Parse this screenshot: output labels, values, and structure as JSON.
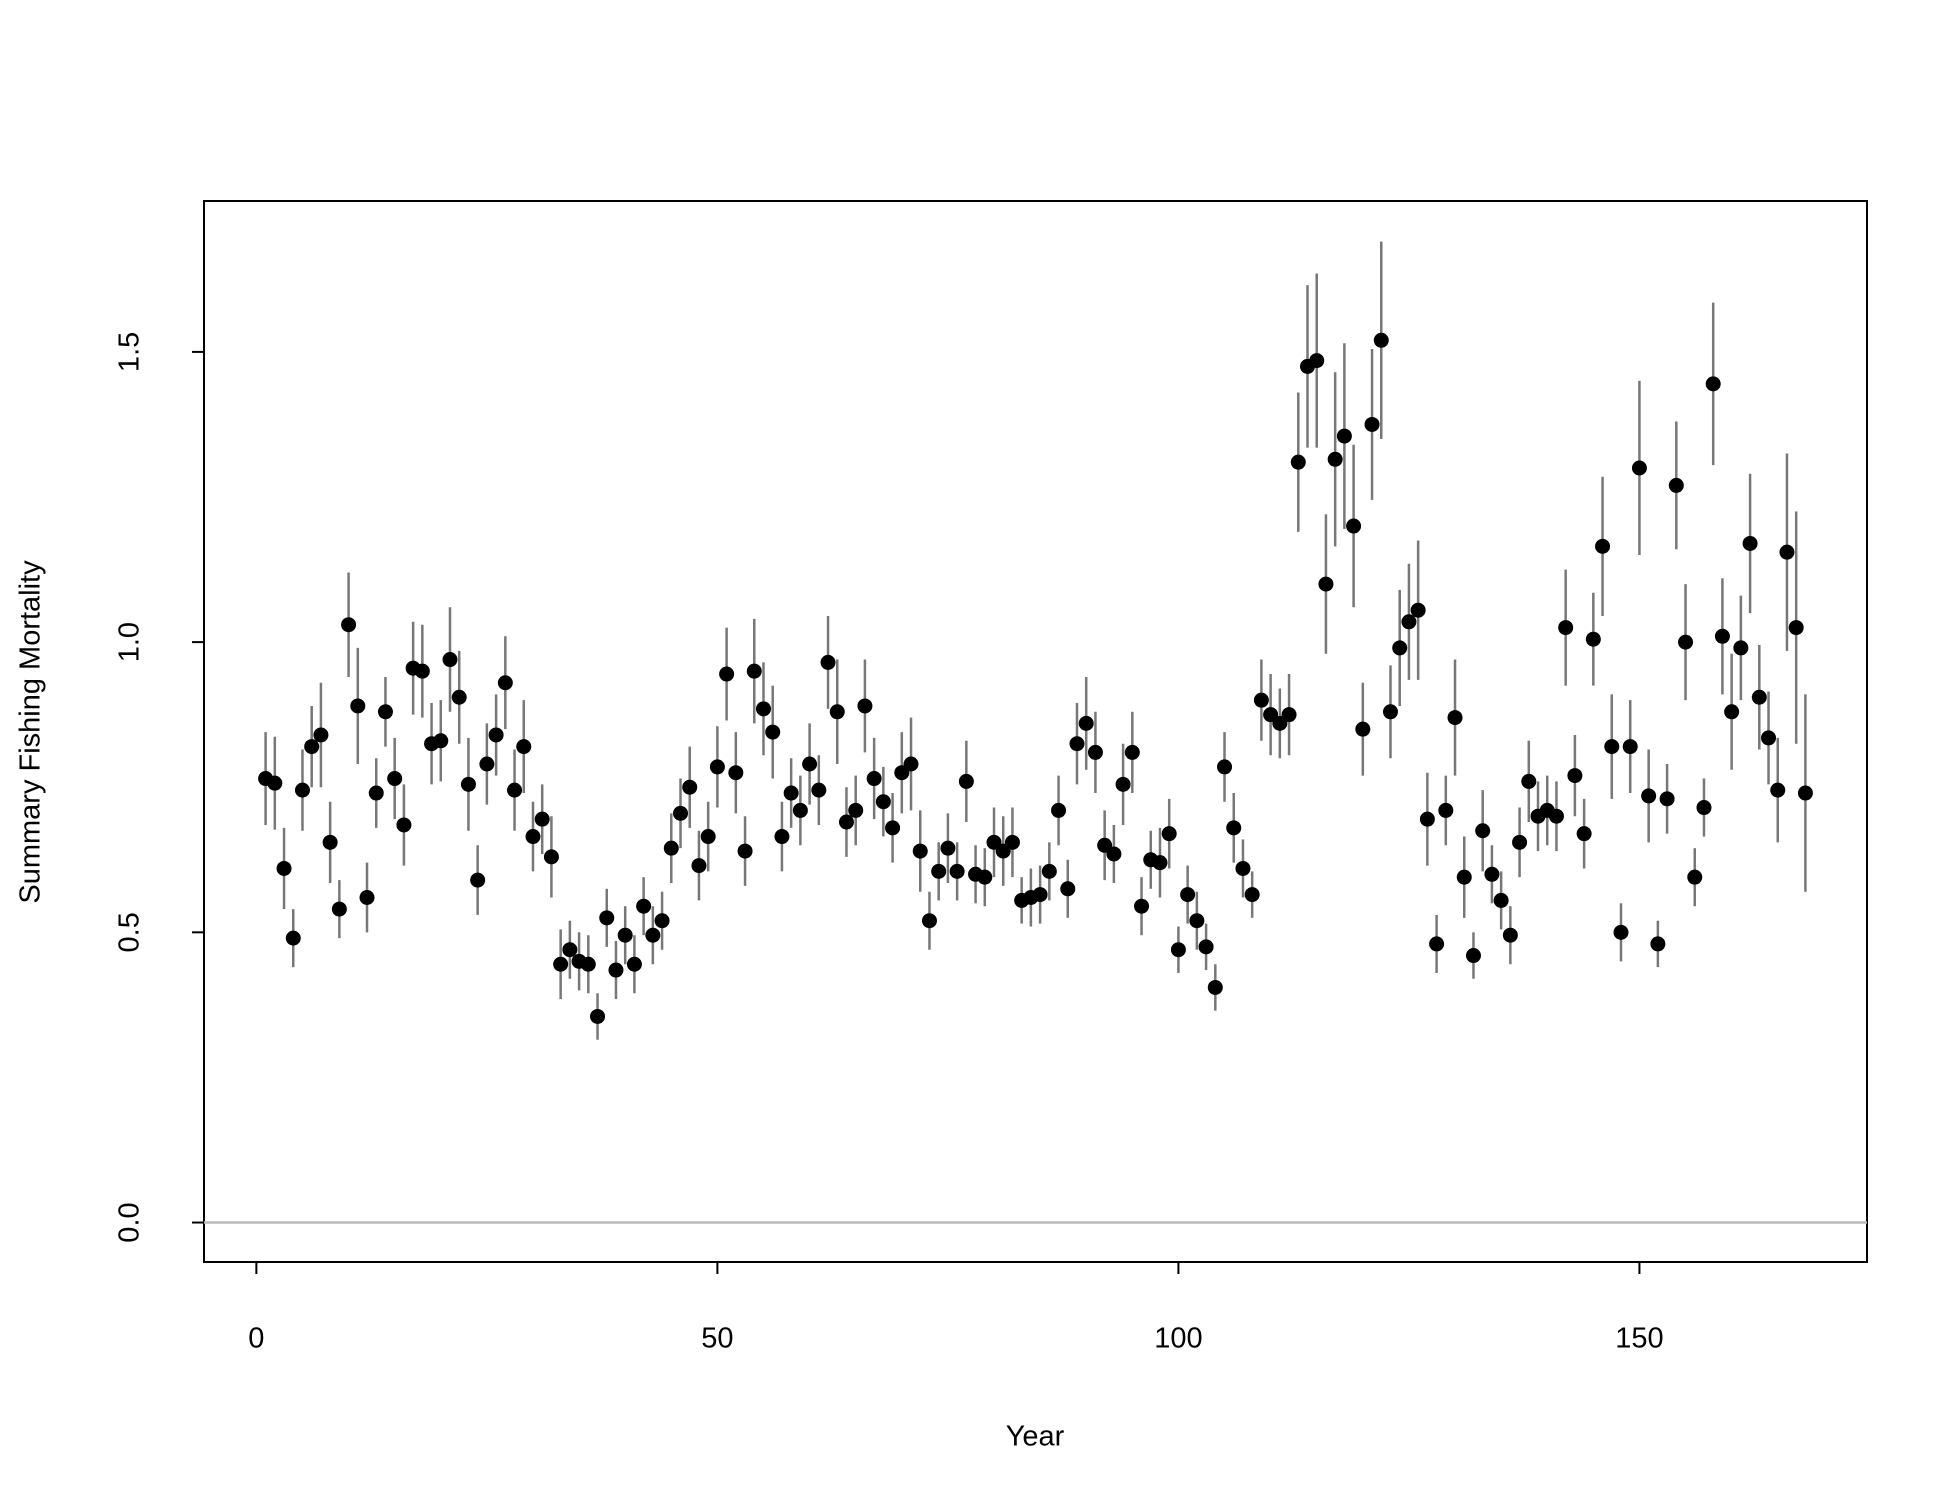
{
  "chart_data": {
    "type": "scatter",
    "xlabel": "Year",
    "ylabel": "Summary Fishing Mortality",
    "x": [
      1,
      2,
      3,
      4,
      5,
      6,
      7,
      8,
      9,
      10,
      11,
      12,
      13,
      14,
      15,
      16,
      17,
      18,
      19,
      20,
      21,
      22,
      23,
      24,
      25,
      26,
      27,
      28,
      29,
      30,
      31,
      32,
      33,
      34,
      35,
      36,
      37,
      38,
      39,
      40,
      41,
      42,
      43,
      44,
      45,
      46,
      47,
      48,
      49,
      50,
      51,
      52,
      53,
      54,
      55,
      56,
      57,
      58,
      59,
      60,
      61,
      62,
      63,
      64,
      65,
      66,
      67,
      68,
      69,
      70,
      71,
      72,
      73,
      74,
      75,
      76,
      77,
      78,
      79,
      80,
      81,
      82,
      83,
      84,
      85,
      86,
      87,
      88,
      89,
      90,
      91,
      92,
      93,
      94,
      95,
      96,
      97,
      98,
      99,
      100,
      101,
      102,
      103,
      104,
      105,
      106,
      107,
      108,
      109,
      110,
      111,
      112,
      113,
      114,
      115,
      116,
      117,
      118,
      119,
      120,
      121,
      122,
      123,
      124,
      125,
      126,
      127,
      128,
      129,
      130,
      131,
      132,
      133,
      134,
      135,
      136,
      137,
      138,
      139,
      140,
      141,
      142,
      143,
      144,
      145,
      146,
      147,
      148,
      149,
      150,
      151,
      152,
      153,
      154,
      155,
      156,
      157,
      158,
      159,
      160,
      161,
      162,
      163,
      164,
      165,
      166,
      167,
      168
    ],
    "values": [
      0.765,
      0.757,
      0.61,
      0.49,
      0.745,
      0.82,
      0.84,
      0.655,
      0.54,
      1.03,
      0.89,
      0.56,
      0.74,
      0.88,
      0.765,
      0.685,
      0.955,
      0.95,
      0.825,
      0.83,
      0.97,
      0.905,
      0.755,
      0.59,
      0.79,
      0.84,
      0.93,
      0.745,
      0.82,
      0.665,
      0.695,
      0.63,
      0.445,
      0.47,
      0.45,
      0.445,
      0.355,
      0.525,
      0.435,
      0.495,
      0.445,
      0.545,
      0.495,
      0.52,
      0.645,
      0.705,
      0.75,
      0.615,
      0.665,
      0.785,
      0.945,
      0.775,
      0.64,
      0.95,
      0.885,
      0.845,
      0.665,
      0.74,
      0.71,
      0.79,
      0.745,
      0.965,
      0.88,
      0.69,
      0.71,
      0.89,
      0.765,
      0.725,
      0.68,
      0.775,
      0.79,
      0.64,
      0.52,
      0.605,
      0.645,
      0.605,
      0.76,
      0.6,
      0.595,
      0.655,
      0.64,
      0.655,
      0.555,
      0.56,
      0.565,
      0.605,
      0.71,
      0.575,
      0.825,
      0.86,
      0.81,
      0.65,
      0.635,
      0.755,
      0.81,
      0.545,
      0.625,
      0.62,
      0.67,
      0.47,
      0.565,
      0.52,
      0.475,
      0.405,
      0.785,
      0.68,
      0.61,
      0.565,
      0.9,
      0.875,
      0.86,
      0.875,
      1.31,
      1.475,
      1.485,
      1.1,
      1.315,
      1.355,
      1.2,
      0.85,
      1.375,
      1.52,
      0.88,
      0.99,
      1.035,
      1.055,
      0.695,
      0.48,
      0.71,
      0.87,
      0.595,
      0.46,
      0.675,
      0.6,
      0.555,
      0.495,
      0.655,
      0.76,
      0.7,
      0.71,
      0.7,
      1.025,
      0.77,
      0.67,
      1.005,
      1.165,
      0.82,
      0.5,
      0.82,
      1.3,
      0.735,
      0.48,
      0.73,
      1.27,
      1.0,
      0.595,
      0.715,
      1.445,
      1.01,
      0.88,
      0.99,
      1.17,
      0.905,
      0.835,
      0.745,
      1.155,
      1.025,
      0.74
    ],
    "errors": [
      0.08,
      0.08,
      0.07,
      0.05,
      0.07,
      0.07,
      0.09,
      0.07,
      0.05,
      0.09,
      0.1,
      0.06,
      0.06,
      0.06,
      0.07,
      0.07,
      0.08,
      0.08,
      0.07,
      0.07,
      0.09,
      0.08,
      0.08,
      0.06,
      0.07,
      0.07,
      0.08,
      0.07,
      0.08,
      0.06,
      0.06,
      0.07,
      0.06,
      0.05,
      0.05,
      0.05,
      0.04,
      0.05,
      0.05,
      0.05,
      0.05,
      0.05,
      0.05,
      0.05,
      0.06,
      0.06,
      0.07,
      0.06,
      0.06,
      0.07,
      0.08,
      0.07,
      0.06,
      0.09,
      0.08,
      0.08,
      0.06,
      0.06,
      0.06,
      0.07,
      0.06,
      0.08,
      0.09,
      0.06,
      0.06,
      0.08,
      0.07,
      0.06,
      0.06,
      0.07,
      0.08,
      0.07,
      0.05,
      0.05,
      0.06,
      0.05,
      0.07,
      0.05,
      0.05,
      0.06,
      0.06,
      0.06,
      0.04,
      0.05,
      0.05,
      0.05,
      0.06,
      0.05,
      0.07,
      0.08,
      0.07,
      0.06,
      0.05,
      0.07,
      0.07,
      0.05,
      0.05,
      0.06,
      0.06,
      0.04,
      0.05,
      0.05,
      0.04,
      0.04,
      0.06,
      0.06,
      0.05,
      0.04,
      0.07,
      0.07,
      0.06,
      0.07,
      0.12,
      0.14,
      0.15,
      0.12,
      0.15,
      0.16,
      0.14,
      0.08,
      0.13,
      0.17,
      0.08,
      0.1,
      0.1,
      0.12,
      0.08,
      0.05,
      0.06,
      0.1,
      0.07,
      0.04,
      0.07,
      0.05,
      0.05,
      0.05,
      0.06,
      0.07,
      0.06,
      0.06,
      0.06,
      0.1,
      0.07,
      0.06,
      0.08,
      0.12,
      0.09,
      0.05,
      0.08,
      0.15,
      0.08,
      0.04,
      0.06,
      0.11,
      0.1,
      0.05,
      0.05,
      0.14,
      0.1,
      0.1,
      0.09,
      0.12,
      0.09,
      0.08,
      0.09,
      0.17,
      0.2,
      0.17
    ],
    "color": "#000000",
    "error_color": "#777777",
    "hline": 0,
    "hline_color": "#bbbbbb",
    "xlim": [
      -5.68,
      174.68
    ],
    "ylim": [
      -0.068,
      1.76
    ],
    "xticks": [
      0,
      50,
      100,
      150
    ],
    "yticks": [
      {
        "value": 0,
        "label": "0.0"
      },
      {
        "value": 0.5,
        "label": "0.5"
      },
      {
        "value": 1,
        "label": "1.0"
      },
      {
        "value": 1.5,
        "label": "1.5"
      }
    ]
  }
}
